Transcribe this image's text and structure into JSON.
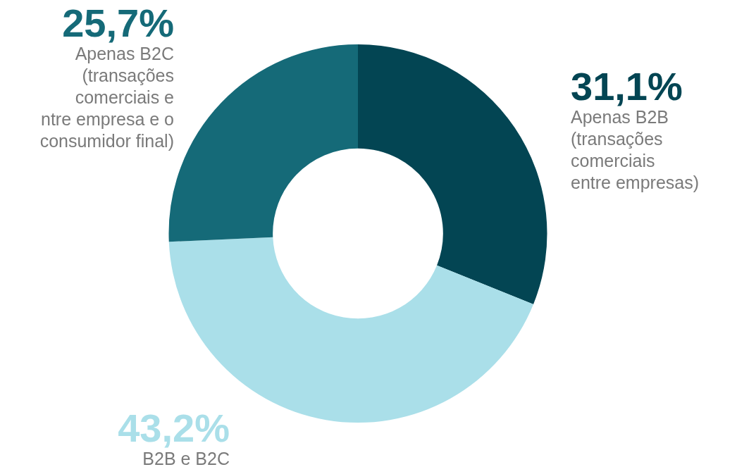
{
  "chart_data": {
    "type": "donut",
    "categories": [
      "Apenas B2B\n(transações\ncomerciais\nentre empresas)",
      "B2B e B2C",
      "Apenas B2C\n(transações\ncomerciais e\nntre empresa e o\nconsumidor final)"
    ],
    "values": [
      31.1,
      43.2,
      25.7
    ],
    "colors": [
      "#034553",
      "#aadfe9",
      "#156a78"
    ],
    "value_labels": [
      "31,1%",
      "43,2%",
      "25,7%"
    ],
    "legend": false
  }
}
